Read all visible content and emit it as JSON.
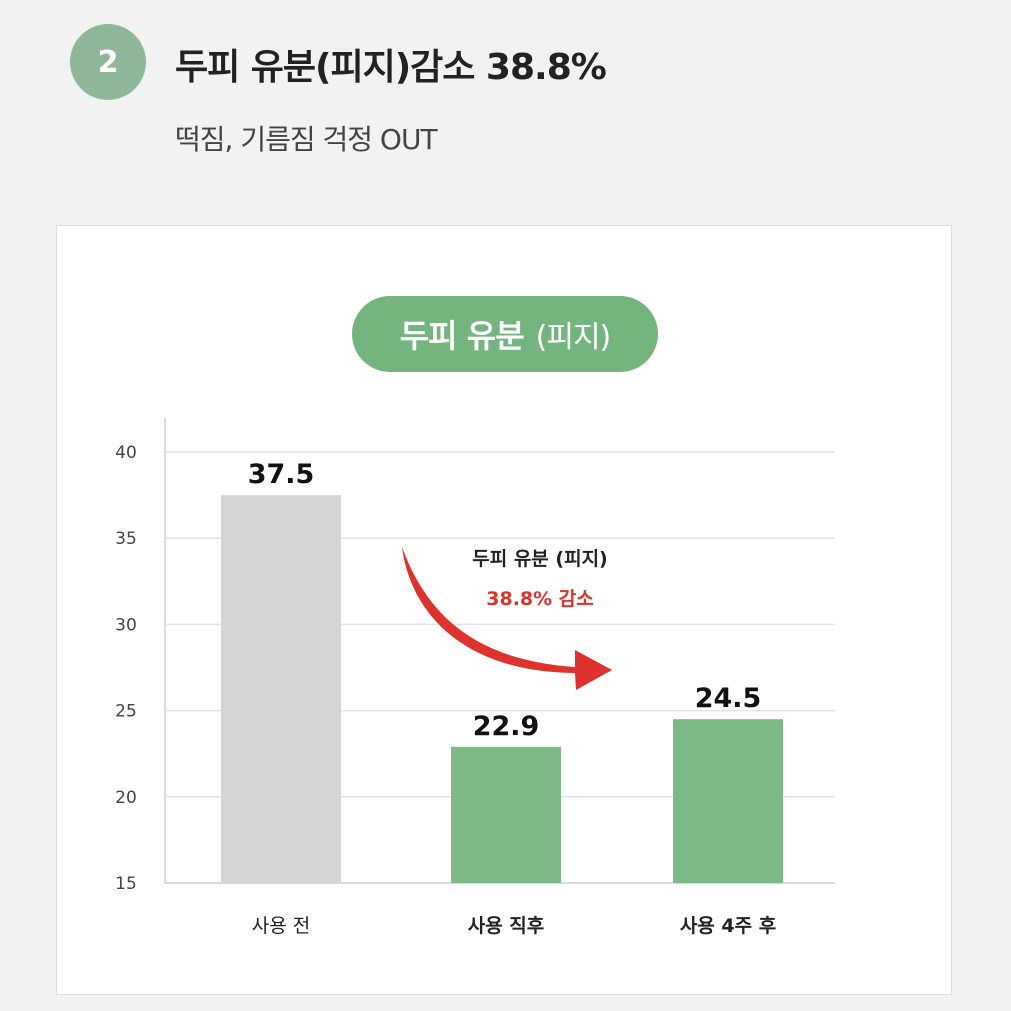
{
  "header": {
    "step_number": "2",
    "title": "두피 유분(피지)감소 38.8%",
    "subtitle": "떡짐, 기름짐 걱정 OUT"
  },
  "chart_card": {
    "pill_strong": "두피 유분",
    "pill_light": "(피지)"
  },
  "annotation": {
    "line1": "두피 유분 (피지)",
    "line2": "38.8% 감소"
  },
  "colors": {
    "badge": "#8fb89b",
    "pill": "#74b47f",
    "bar_before": "#d5d5d5",
    "bar_after": "#7cb987",
    "arrow": "#e0322d",
    "annotation_red": "#e0322d"
  },
  "chart_data": {
    "type": "bar",
    "title": "두피 유분 (피지)",
    "categories": [
      "사용 전",
      "사용 직후",
      "사용 4주 후"
    ],
    "values": [
      37.5,
      22.9,
      24.5
    ],
    "value_labels": [
      "37.5",
      "22.9",
      "24.5"
    ],
    "bar_colors": [
      "#d5d5d5",
      "#7cb987",
      "#7cb987"
    ],
    "category_bold": [
      false,
      true,
      true
    ],
    "ylim": [
      15,
      40
    ],
    "yticks": [
      15,
      20,
      25,
      30,
      35,
      40
    ],
    "grid": true,
    "xlabel": "",
    "ylabel": ""
  }
}
